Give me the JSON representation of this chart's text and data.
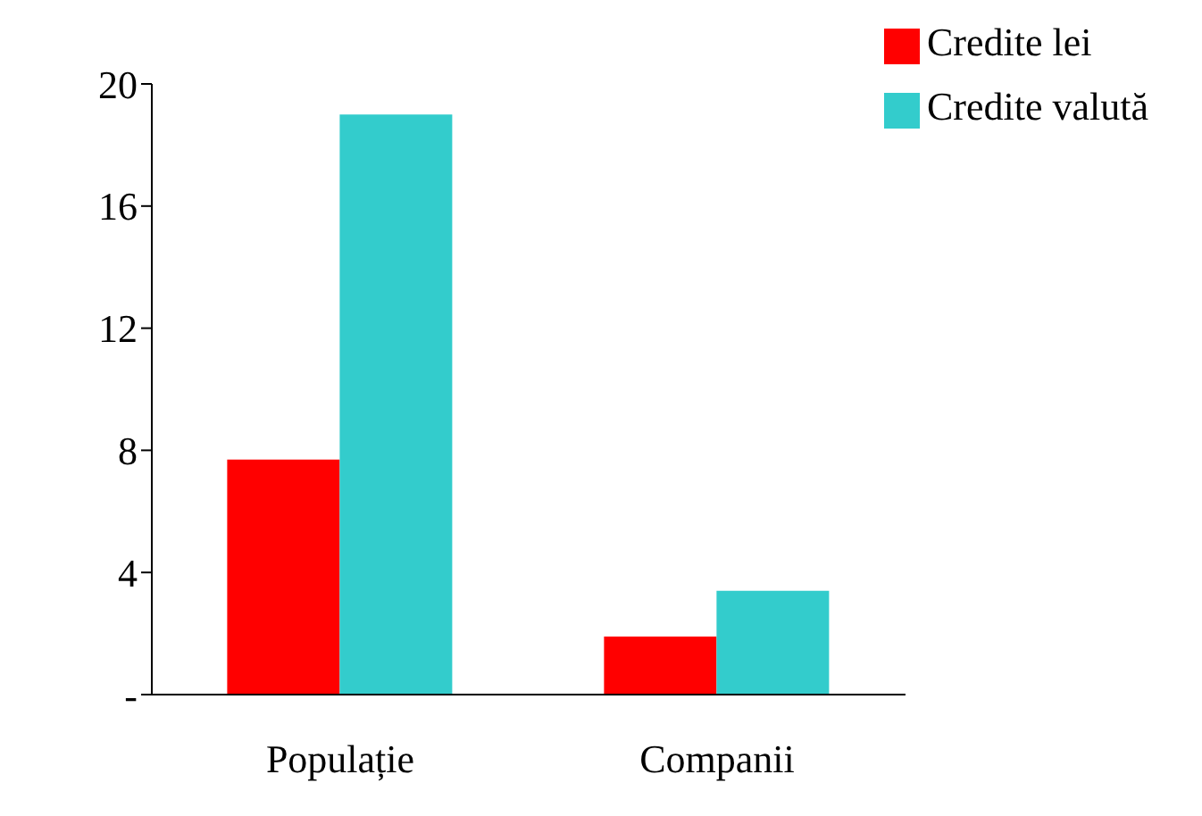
{
  "chart_data": {
    "type": "bar",
    "categories": [
      "Populație",
      "Companii"
    ],
    "series": [
      {
        "name": "Credite lei",
        "color": "#ff0000",
        "values": [
          7.7,
          1.9
        ]
      },
      {
        "name": "Credite valută",
        "color": "#33cccc",
        "values": [
          19.0,
          3.4
        ]
      }
    ],
    "ylim": [
      0,
      20
    ],
    "yticks": [
      {
        "value": 0,
        "label": "-"
      },
      4,
      8,
      12,
      16,
      20
    ],
    "grid": false,
    "legend": "top right"
  }
}
